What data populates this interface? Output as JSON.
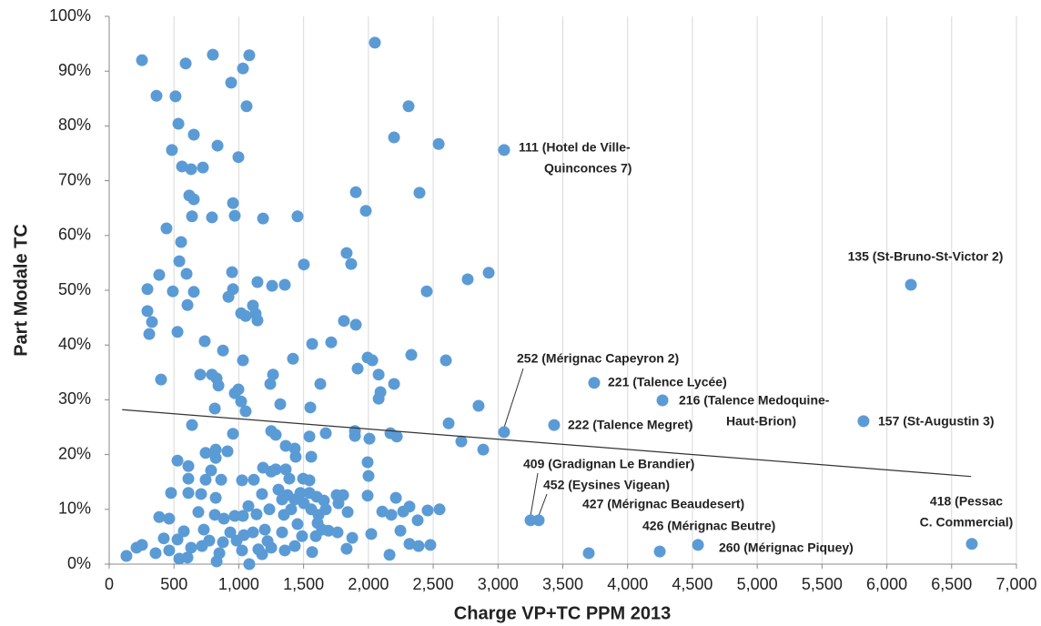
{
  "chart_data": {
    "type": "scatter",
    "x_label": "Charge VP+TC PPM 2013",
    "y_label": "Part Modale TC",
    "xlim": [
      0,
      7000
    ],
    "ylim": [
      0,
      100
    ],
    "grid": "x",
    "color": "#5b9bd5",
    "xticks": [
      0,
      500,
      {
        "value": 1000,
        "label": "1,000"
      },
      {
        "value": 1500,
        "label": "1,500"
      },
      {
        "value": 2000,
        "label": "2,000"
      },
      {
        "value": 2500,
        "label": "2,500"
      },
      {
        "value": 3000,
        "label": "3,000"
      },
      {
        "value": 3500,
        "label": "3,500"
      },
      {
        "value": 4000,
        "label": "4,000"
      },
      {
        "value": 4500,
        "label": "4,500"
      },
      {
        "value": 5000,
        "label": "5,000"
      },
      {
        "value": 5500,
        "label": "5,500"
      },
      {
        "value": 6000,
        "label": "6,000"
      },
      {
        "value": 6500,
        "label": "6,500"
      },
      {
        "value": 7000,
        "label": "7,000"
      }
    ],
    "yticks": [
      {
        "value": 0,
        "label": "0%"
      },
      {
        "value": 10,
        "label": "10%"
      },
      {
        "value": 20,
        "label": "20%"
      },
      {
        "value": 30,
        "label": "30%"
      },
      {
        "value": 40,
        "label": "40%"
      },
      {
        "value": 50,
        "label": "50%"
      },
      {
        "value": 60,
        "label": "60%"
      },
      {
        "value": 70,
        "label": "70%"
      },
      {
        "value": 80,
        "label": "80%"
      },
      {
        "value": 90,
        "label": "90%"
      },
      {
        "value": 100,
        "label": "100%"
      }
    ],
    "trendline": {
      "x": [
        100,
        6650
      ],
      "y": [
        28.2,
        16.0
      ]
    },
    "points": {
      "x": [
        253,
        365,
        512,
        590,
        800,
        1081,
        1032,
        941,
        2050,
        2310,
        1060,
        534,
        653,
        2198,
        2542,
        484,
        562,
        632,
        723,
        836,
        997,
        618,
        653,
        639,
        793,
        955,
        969,
        1187,
        1453,
        1903,
        1980,
        2394,
        442,
        555,
        541,
        597,
        386,
        295,
        491,
        653,
        604,
        948,
        955,
        920,
        1144,
        1257,
        1355,
        1502,
        1832,
        1867,
        2450,
        2766,
        2928,
        295,
        330,
        309,
        527,
        1018,
        1109,
        1130,
        1144,
        1053,
        737,
        878,
        1032,
        400,
        702,
        793,
        843,
        829,
        969,
        997,
        1053,
        1018,
        815,
        1264,
        1243,
        1320,
        1418,
        1566,
        1713,
        1811,
        1903,
        1629,
        1552,
        1917,
        1994,
        2030,
        2079,
        2093,
        2079,
        2198,
        2331,
        2598,
        2850,
        2619,
        2717,
        2886,
        639,
        955,
        1250,
        1285,
        1362,
        1432,
        1439,
        1545,
        1559,
        1671,
        1896,
        1896,
        2008,
        1994,
        2001,
        2170,
        2219,
        527,
        611,
        611,
        744,
        822,
        822,
        913,
        864,
        744,
        786,
        1025,
        1116,
        1187,
        1250,
        1285,
        1362,
        1390,
        1496,
        1545,
        477,
        611,
        709,
        822,
        1074,
        1179,
        1306,
        1334,
        1376,
        1432,
        1475,
        1545,
        1601,
        1657,
        1755,
        1805,
        1769,
        1994,
        2212,
        386,
        463,
        688,
        815,
        885,
        969,
        1032,
        1137,
        1236,
        1348,
        1404,
        1502,
        1559,
        1615,
        1671,
        1453,
        1608,
        1840,
        2107,
        2177,
        2268,
        2317,
        2380,
        2457,
        2549,
        2247,
        2022,
        1643,
        1692,
        1762,
        730,
        576,
        421,
        527,
        1039,
        1109,
        1201,
        1334,
        1488,
        1594,
        983,
        934,
        878,
        772,
        716,
        632,
        253,
        211,
        133,
        358,
        463,
        541,
        604,
        829,
        1081,
        1151,
        1250,
        1180,
        1355,
        1566,
        1832,
        1875,
        2163,
        2317,
        2387,
        2478,
        850,
        1025,
        1222,
        1432
      ],
      "y": [
        92.0,
        85.5,
        85.4,
        91.4,
        93.0,
        92.9,
        90.5,
        87.9,
        95.2,
        83.6,
        83.6,
        80.4,
        78.4,
        77.9,
        76.7,
        75.6,
        72.6,
        72.1,
        72.4,
        76.4,
        74.3,
        67.3,
        66.6,
        63.5,
        63.3,
        65.9,
        63.6,
        63.1,
        63.5,
        67.9,
        64.5,
        67.8,
        61.3,
        58.8,
        55.3,
        53.0,
        52.8,
        50.2,
        49.8,
        49.7,
        47.3,
        53.3,
        50.2,
        48.8,
        51.5,
        50.8,
        51.0,
        54.7,
        56.8,
        54.8,
        49.8,
        52.0,
        53.2,
        46.2,
        44.2,
        42.0,
        42.4,
        45.8,
        47.2,
        45.7,
        44.5,
        45.3,
        40.7,
        39.0,
        37.2,
        33.7,
        34.6,
        34.6,
        32.6,
        33.9,
        31.2,
        31.9,
        27.9,
        29.7,
        28.4,
        34.6,
        32.9,
        29.2,
        37.5,
        40.2,
        40.5,
        44.4,
        43.7,
        32.9,
        28.6,
        35.7,
        37.7,
        37.2,
        34.6,
        31.4,
        30.2,
        32.9,
        38.2,
        37.2,
        28.9,
        25.7,
        22.4,
        20.9,
        25.4,
        23.8,
        24.3,
        23.6,
        21.6,
        21.1,
        19.6,
        23.3,
        19.6,
        23.9,
        24.3,
        23.4,
        22.9,
        18.6,
        16.1,
        23.9,
        23.3,
        18.9,
        17.9,
        15.6,
        20.3,
        20.9,
        19.4,
        20.6,
        15.4,
        15.4,
        17.1,
        15.3,
        15.4,
        17.6,
        16.9,
        17.3,
        17.3,
        15.6,
        15.6,
        15.3,
        13.0,
        13.0,
        12.8,
        12.1,
        10.6,
        12.8,
        13.6,
        11.8,
        12.6,
        11.8,
        13.0,
        13.0,
        12.3,
        11.6,
        12.6,
        12.6,
        11.1,
        12.5,
        12.1,
        8.6,
        8.3,
        9.5,
        9.0,
        8.3,
        8.8,
        8.8,
        9.1,
        10.0,
        9.0,
        10.0,
        11.1,
        10.0,
        9.0,
        10.0,
        7.3,
        7.5,
        9.5,
        9.6,
        9.0,
        9.6,
        10.5,
        8.0,
        9.8,
        10.0,
        6.1,
        5.5,
        6.3,
        6.1,
        5.8,
        6.3,
        6.0,
        4.7,
        4.5,
        5.3,
        5.8,
        6.3,
        5.8,
        5.1,
        5.1,
        4.3,
        5.8,
        4.0,
        4.3,
        3.3,
        3.0,
        3.5,
        3.0,
        1.5,
        2.0,
        2.5,
        1.0,
        1.2,
        0.5,
        0.0,
        2.7,
        3.0,
        1.8,
        2.5,
        2.2,
        2.8,
        4.8,
        1.7,
        3.7,
        3.3,
        3.5,
        2.0,
        2.5,
        4.2,
        3.3
      ]
    },
    "annotations": [
      {
        "text": [
          "111 (Hotel de Ville-",
          "Quinconces 7)"
        ],
        "x": 3047,
        "y": 75.6
      },
      {
        "text": [
          "135 (St-Bruno-St-Victor 2)"
        ],
        "x": 6186,
        "y": 51.0
      },
      {
        "text": [
          "252 (Mérignac Capeyron 2)"
        ],
        "x": 3047,
        "y": 24.1
      },
      {
        "text": [
          "221 (Talence Lycée)"
        ],
        "x": 3742,
        "y": 33.1
      },
      {
        "text": [
          "216 (Talence Medoquine-",
          "Haut-Brion)"
        ],
        "x": 4269,
        "y": 29.9
      },
      {
        "text": [
          "222 (Talence Megret)"
        ],
        "x": 3433,
        "y": 25.4
      },
      {
        "text": [
          "157 (St-Augustin 3)"
        ],
        "x": 5820,
        "y": 26.1
      },
      {
        "text": [
          "409 (Gradignan Le Brandier)"
        ],
        "x": 3251,
        "y": 8.0
      },
      {
        "text": [
          "452 (Eysines Vigean)"
        ],
        "x": 3314,
        "y": 8.0
      },
      {
        "text": [
          "427 (Mérignac Beaudesert)"
        ],
        "x": 3700,
        "y": 2.0
      },
      {
        "text": [
          "426 (Mérignac Beutre)"
        ],
        "x": 4248,
        "y": 2.3
      },
      {
        "text": [
          "260 (Mérignac Piquey)"
        ],
        "x": 4543,
        "y": 3.5
      },
      {
        "text": [
          "418 (Pessac",
          "C. Commercial)"
        ],
        "x": 6656,
        "y": 3.7
      }
    ]
  }
}
